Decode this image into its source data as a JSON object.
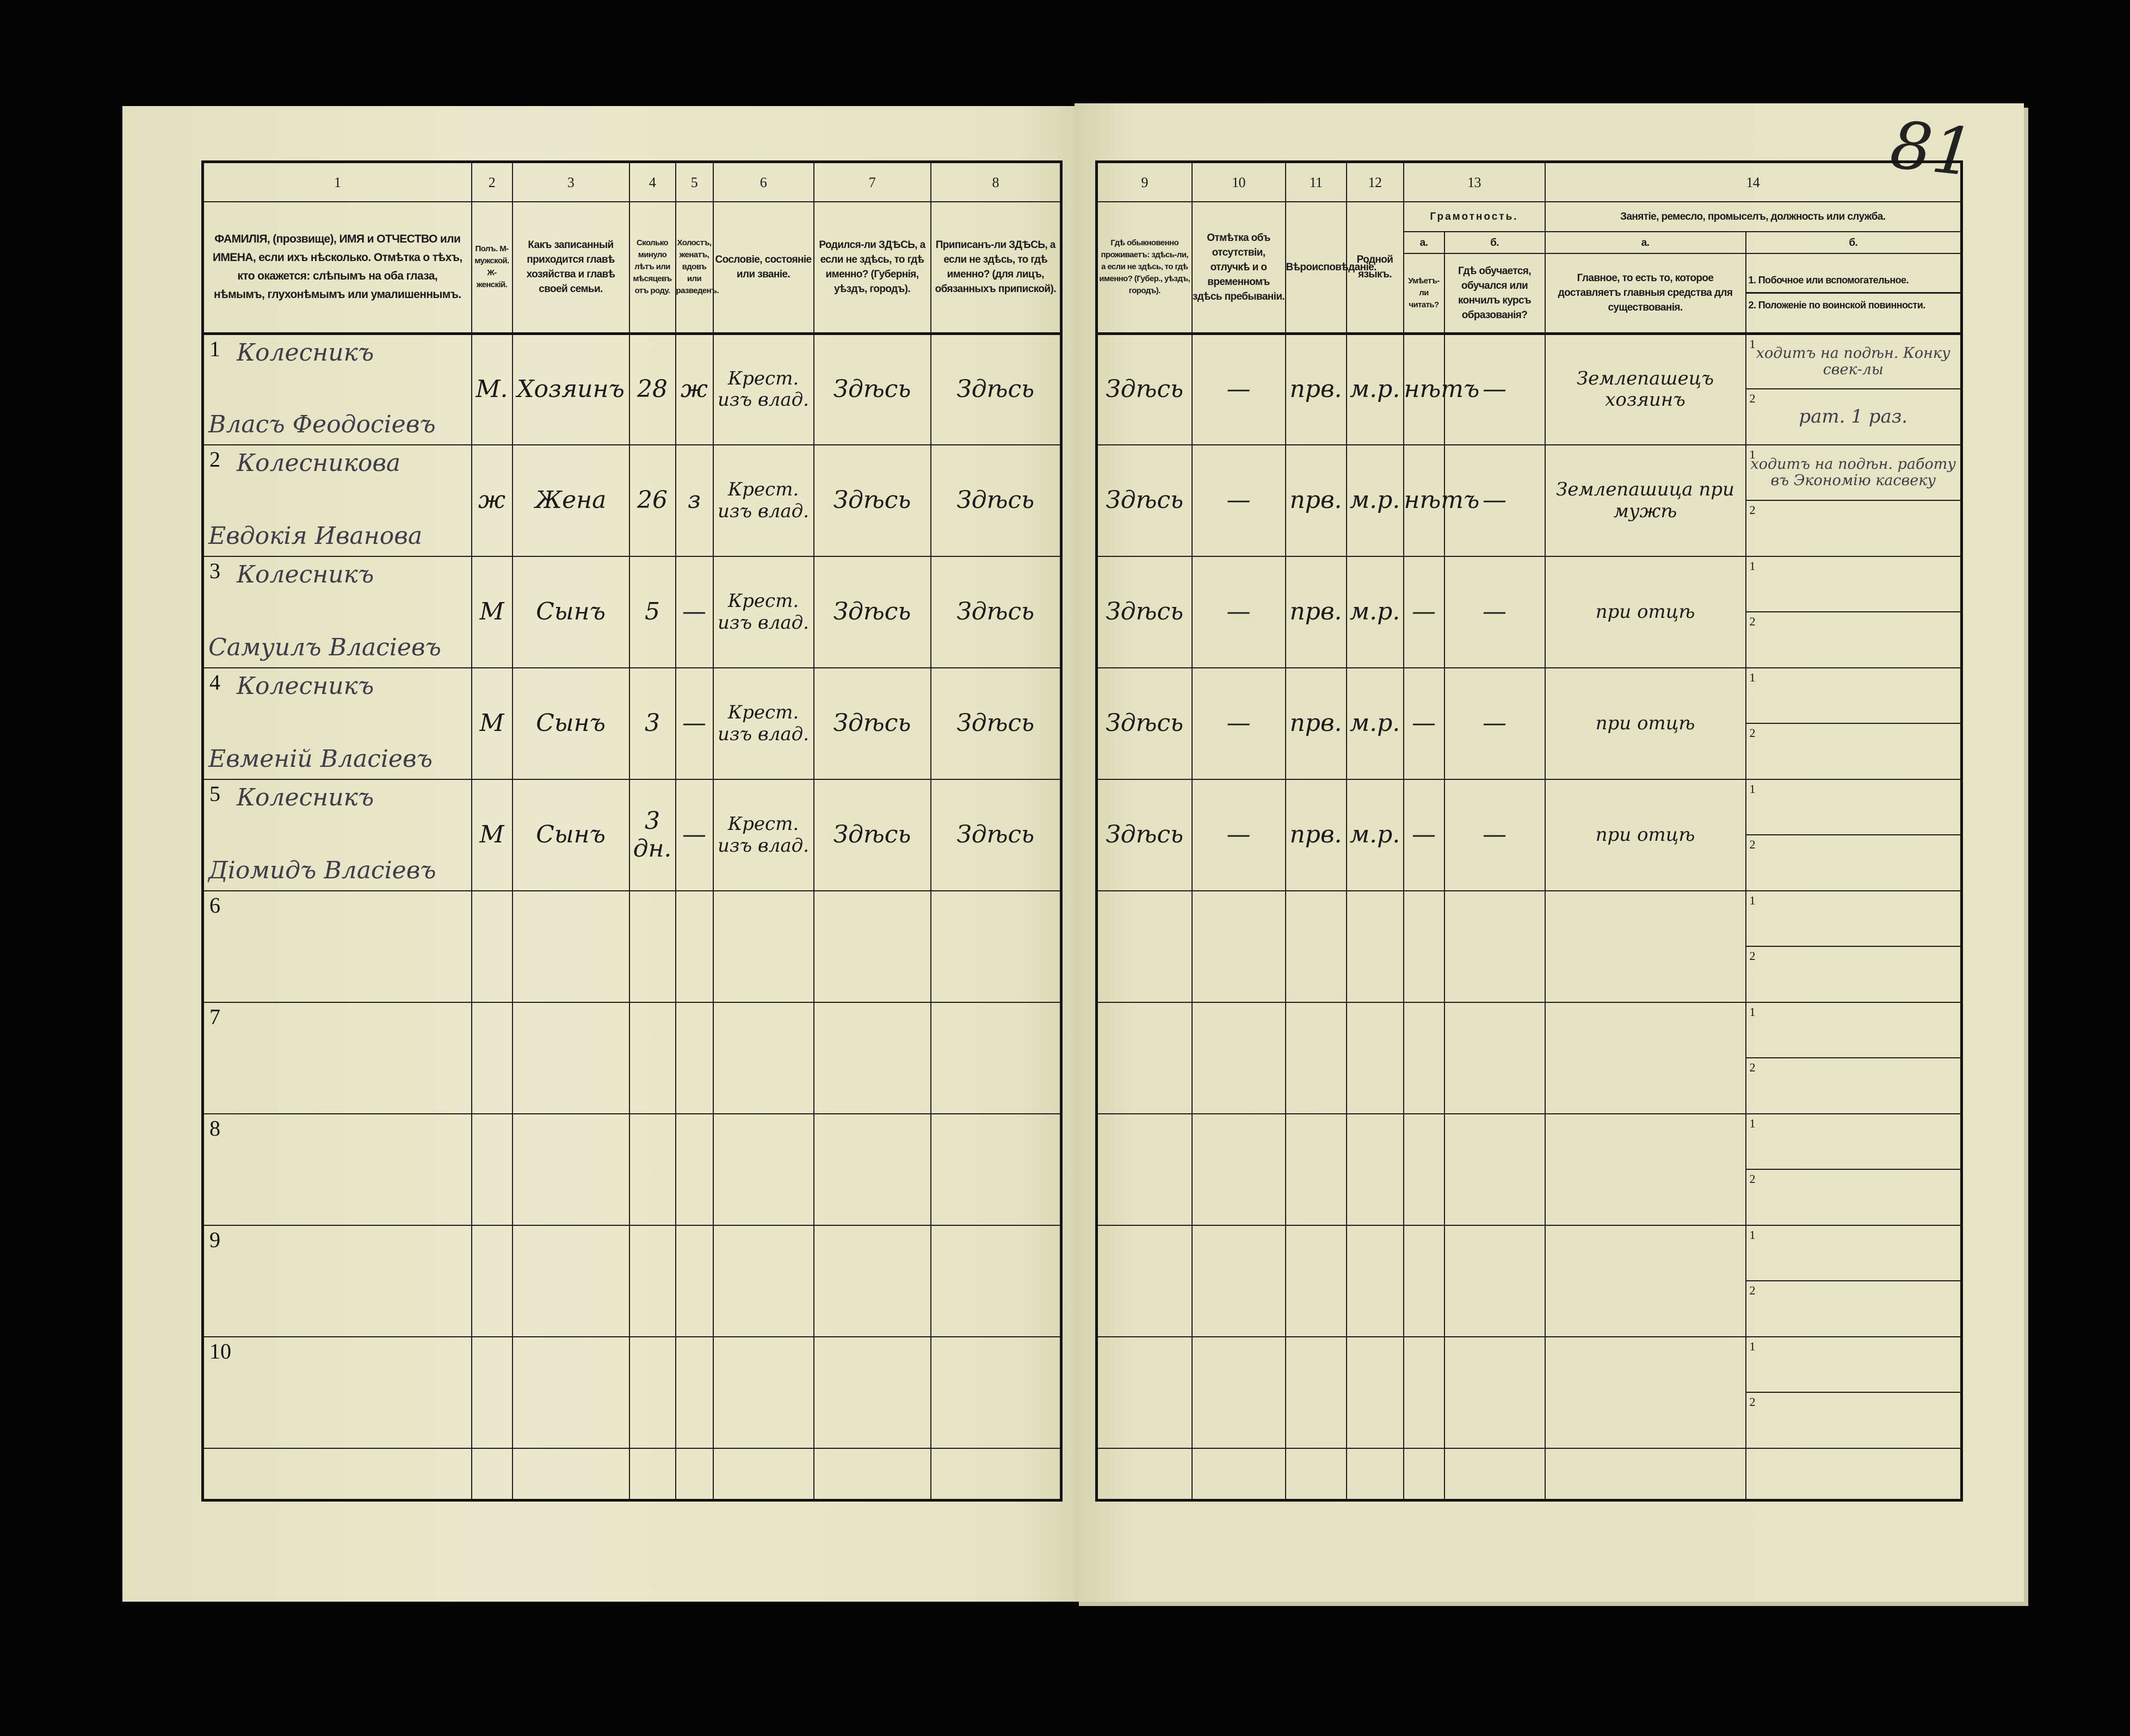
{
  "page_number": "81",
  "left_headers": [
    {
      "num": "1",
      "text": "ФАМИЛІЯ, (прозвище), ИМЯ и ОТЧЕСТВО или ИМЕНА, если ихъ нѣсколько. Отмѣтка о тѣхъ, кто окажется: слѣпымъ на оба глаза, нѣмымъ, глухонѣмымъ или умалишеннымъ."
    },
    {
      "num": "2",
      "text": "Полъ. М-мужской. Ж-женскій."
    },
    {
      "num": "3",
      "text": "Какъ записанный приходится главѣ хозяйства и главѣ своей семьи."
    },
    {
      "num": "4",
      "text": "Сколько минуло лѣтъ или мѣсяцевъ отъ роду."
    },
    {
      "num": "5",
      "text": "Холостъ, женатъ, вдовъ или разведенъ."
    },
    {
      "num": "6",
      "text": "Сословіе, состояніе или званіе."
    },
    {
      "num": "7",
      "text": "Родился-ли ЗДѢСЬ, а если не здѣсь, то гдѣ именно? (Губернія, уѣздъ, городъ)."
    },
    {
      "num": "8",
      "text": "Приписанъ-ли ЗДѢСЬ, а если не здѣсь, то гдѣ именно? (для лицъ, обязанныхъ припиской)."
    }
  ],
  "right_headers": {
    "c9": {
      "num": "9",
      "text": "Гдѣ обыкновенно проживаетъ: здѣсь-ли, а если не здѣсь, то гдѣ именно? (Губер., уѣздъ, городъ)."
    },
    "c10": {
      "num": "10",
      "text": "Отмѣтка объ отсутствіи, отлучкѣ и о временномъ здѣсь пребываніи."
    },
    "c11": {
      "num": "11",
      "text": "Вѣроисповѣданіе."
    },
    "c12": {
      "num": "12",
      "text": "Родной языкъ."
    },
    "c13": {
      "num": "13",
      "title": "Грамотность.",
      "a_label": "а.",
      "b_label": "б.",
      "a_text": "Умѣетъ-ли читать?",
      "b_text": "Гдѣ обучается, обучался или кончилъ курсъ образованія?"
    },
    "c14": {
      "num": "14",
      "title": "Занятіе, ремесло, промыселъ, должность или служба.",
      "a_label": "а.",
      "b_label": "б.",
      "a_text": "Главное, то есть то, которое доставляетъ главныя средства для существованія.",
      "b1_text": "1. Побочное или вспомогательное.",
      "b2_text": "2. Положеніе по воинской повинности."
    }
  },
  "sub_labels": [
    "1",
    "2"
  ],
  "rows": [
    {
      "num": "1",
      "surname": "Колесникъ",
      "given": "Власъ Феодосіевъ",
      "sex": "М.",
      "relation": "Хозяинъ",
      "age": "28",
      "marital": "ж",
      "estate": "Крест. изъ влад.",
      "birthplace": "Здѣсь",
      "registered": "Здѣсь",
      "residence": "Здѣсь",
      "absence": "—",
      "religion": "прв.",
      "language": "м.р.",
      "literate": "нѣтъ",
      "education": "—",
      "occupation": "Землепашецъ хозяинъ",
      "secondary": "ходитъ на подѣн. Конку свек-лы",
      "military": "рат. 1 раз."
    },
    {
      "num": "2",
      "surname": "Колесникова",
      "given": "Евдокія Иванова",
      "sex": "ж",
      "relation": "Жена",
      "age": "26",
      "marital": "з",
      "estate": "Крест. изъ влад.",
      "birthplace": "Здѣсь",
      "registered": "Здѣсь",
      "residence": "Здѣсь",
      "absence": "—",
      "religion": "прв.",
      "language": "м.р.",
      "literate": "нѣтъ",
      "education": "—",
      "occupation": "Землепашица при мужѣ",
      "secondary": "ходитъ на подѣн. работу въ Экономію касвеку",
      "military": ""
    },
    {
      "num": "3",
      "surname": "Колесникъ",
      "given": "Самуилъ Власіевъ",
      "sex": "М",
      "relation": "Сынъ",
      "age": "5",
      "marital": "—",
      "estate": "Крест. изъ влад.",
      "birthplace": "Здѣсь",
      "registered": "Здѣсь",
      "residence": "Здѣсь",
      "absence": "—",
      "religion": "прв.",
      "language": "м.р.",
      "literate": "—",
      "education": "—",
      "occupation": "при отцѣ",
      "secondary": "",
      "military": ""
    },
    {
      "num": "4",
      "surname": "Колесникъ",
      "given": "Евменій Власіевъ",
      "sex": "М",
      "relation": "Сынъ",
      "age": "3",
      "marital": "—",
      "estate": "Крест. изъ влад.",
      "birthplace": "Здѣсь",
      "registered": "Здѣсь",
      "residence": "Здѣсь",
      "absence": "—",
      "religion": "прв.",
      "language": "м.р.",
      "literate": "—",
      "education": "—",
      "occupation": "при отцѣ",
      "secondary": "",
      "military": ""
    },
    {
      "num": "5",
      "surname": "Колесникъ",
      "given": "Діомидъ Власіевъ",
      "sex": "М",
      "relation": "Сынъ",
      "age": "3 дн.",
      "marital": "—",
      "estate": "Крест. изъ влад.",
      "birthplace": "Здѣсь",
      "registered": "Здѣсь",
      "residence": "Здѣсь",
      "absence": "—",
      "religion": "прв.",
      "language": "м.р.",
      "literate": "—",
      "education": "—",
      "occupation": "при отцѣ",
      "secondary": "",
      "military": ""
    },
    {
      "num": "6"
    },
    {
      "num": "7"
    },
    {
      "num": "8"
    },
    {
      "num": "9"
    },
    {
      "num": "10"
    }
  ]
}
